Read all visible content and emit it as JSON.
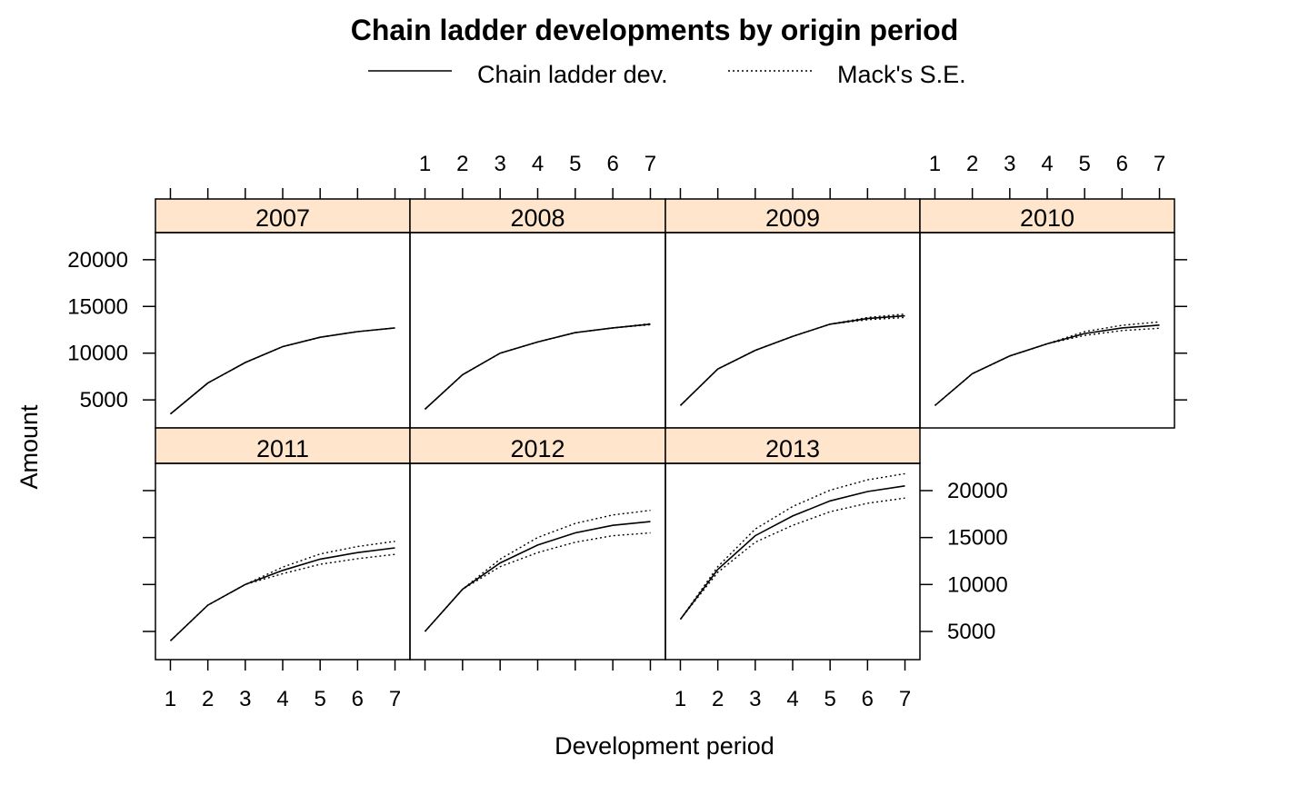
{
  "title": "Chain ladder developments by origin period",
  "legend": [
    {
      "label": "Chain ladder dev.",
      "style": "solid"
    },
    {
      "label": "Mack's S.E.",
      "style": "dotted"
    }
  ],
  "xlabel": "Development period",
  "ylabel": "Amount",
  "colors": {
    "strip": "#ffe5cc",
    "line": "#000000",
    "background": "#ffffff"
  },
  "chart_data": {
    "type": "line",
    "layout": "4 columns x 2 rows lattice panels",
    "x_ticks": [
      1,
      2,
      3,
      4,
      5,
      6,
      7
    ],
    "y_ticks": [
      5000,
      10000,
      15000,
      20000
    ],
    "xlim": [
      0.6,
      7.4
    ],
    "ylim": [
      2000,
      22900
    ],
    "panels": [
      {
        "origin": "2007",
        "dev": [
          3500,
          6800,
          9000,
          10700,
          11700,
          12300,
          12700
        ],
        "se": [
          0,
          0,
          0,
          0,
          0,
          0,
          0
        ]
      },
      {
        "origin": "2008",
        "dev": [
          4000,
          7700,
          10000,
          11200,
          12200,
          12700,
          13100
        ],
        "se": [
          0,
          0,
          0,
          0,
          0,
          0,
          60
        ]
      },
      {
        "origin": "2009",
        "dev": [
          4400,
          8300,
          10300,
          11800,
          13100,
          13700,
          14000
        ],
        "se": [
          0,
          0,
          0,
          0,
          0,
          120,
          180
        ]
      },
      {
        "origin": "2010",
        "dev": [
          4400,
          7800,
          9700,
          11000,
          12100,
          12700,
          13000
        ],
        "se": [
          0,
          0,
          0,
          0,
          200,
          280,
          340
        ]
      },
      {
        "origin": "2011",
        "dev": [
          4000,
          7800,
          10000,
          11500,
          12700,
          13400,
          13900
        ],
        "se": [
          0,
          0,
          0,
          350,
          550,
          650,
          700
        ]
      },
      {
        "origin": "2012",
        "dev": [
          5000,
          9500,
          12300,
          14200,
          15500,
          16300,
          16700
        ],
        "se": [
          0,
          0,
          400,
          800,
          1000,
          1100,
          1200
        ]
      },
      {
        "origin": "2013",
        "dev": [
          6300,
          11600,
          15200,
          17300,
          18900,
          19900,
          20500
        ],
        "se": [
          0,
          300,
          700,
          1000,
          1150,
          1250,
          1300
        ]
      }
    ]
  }
}
